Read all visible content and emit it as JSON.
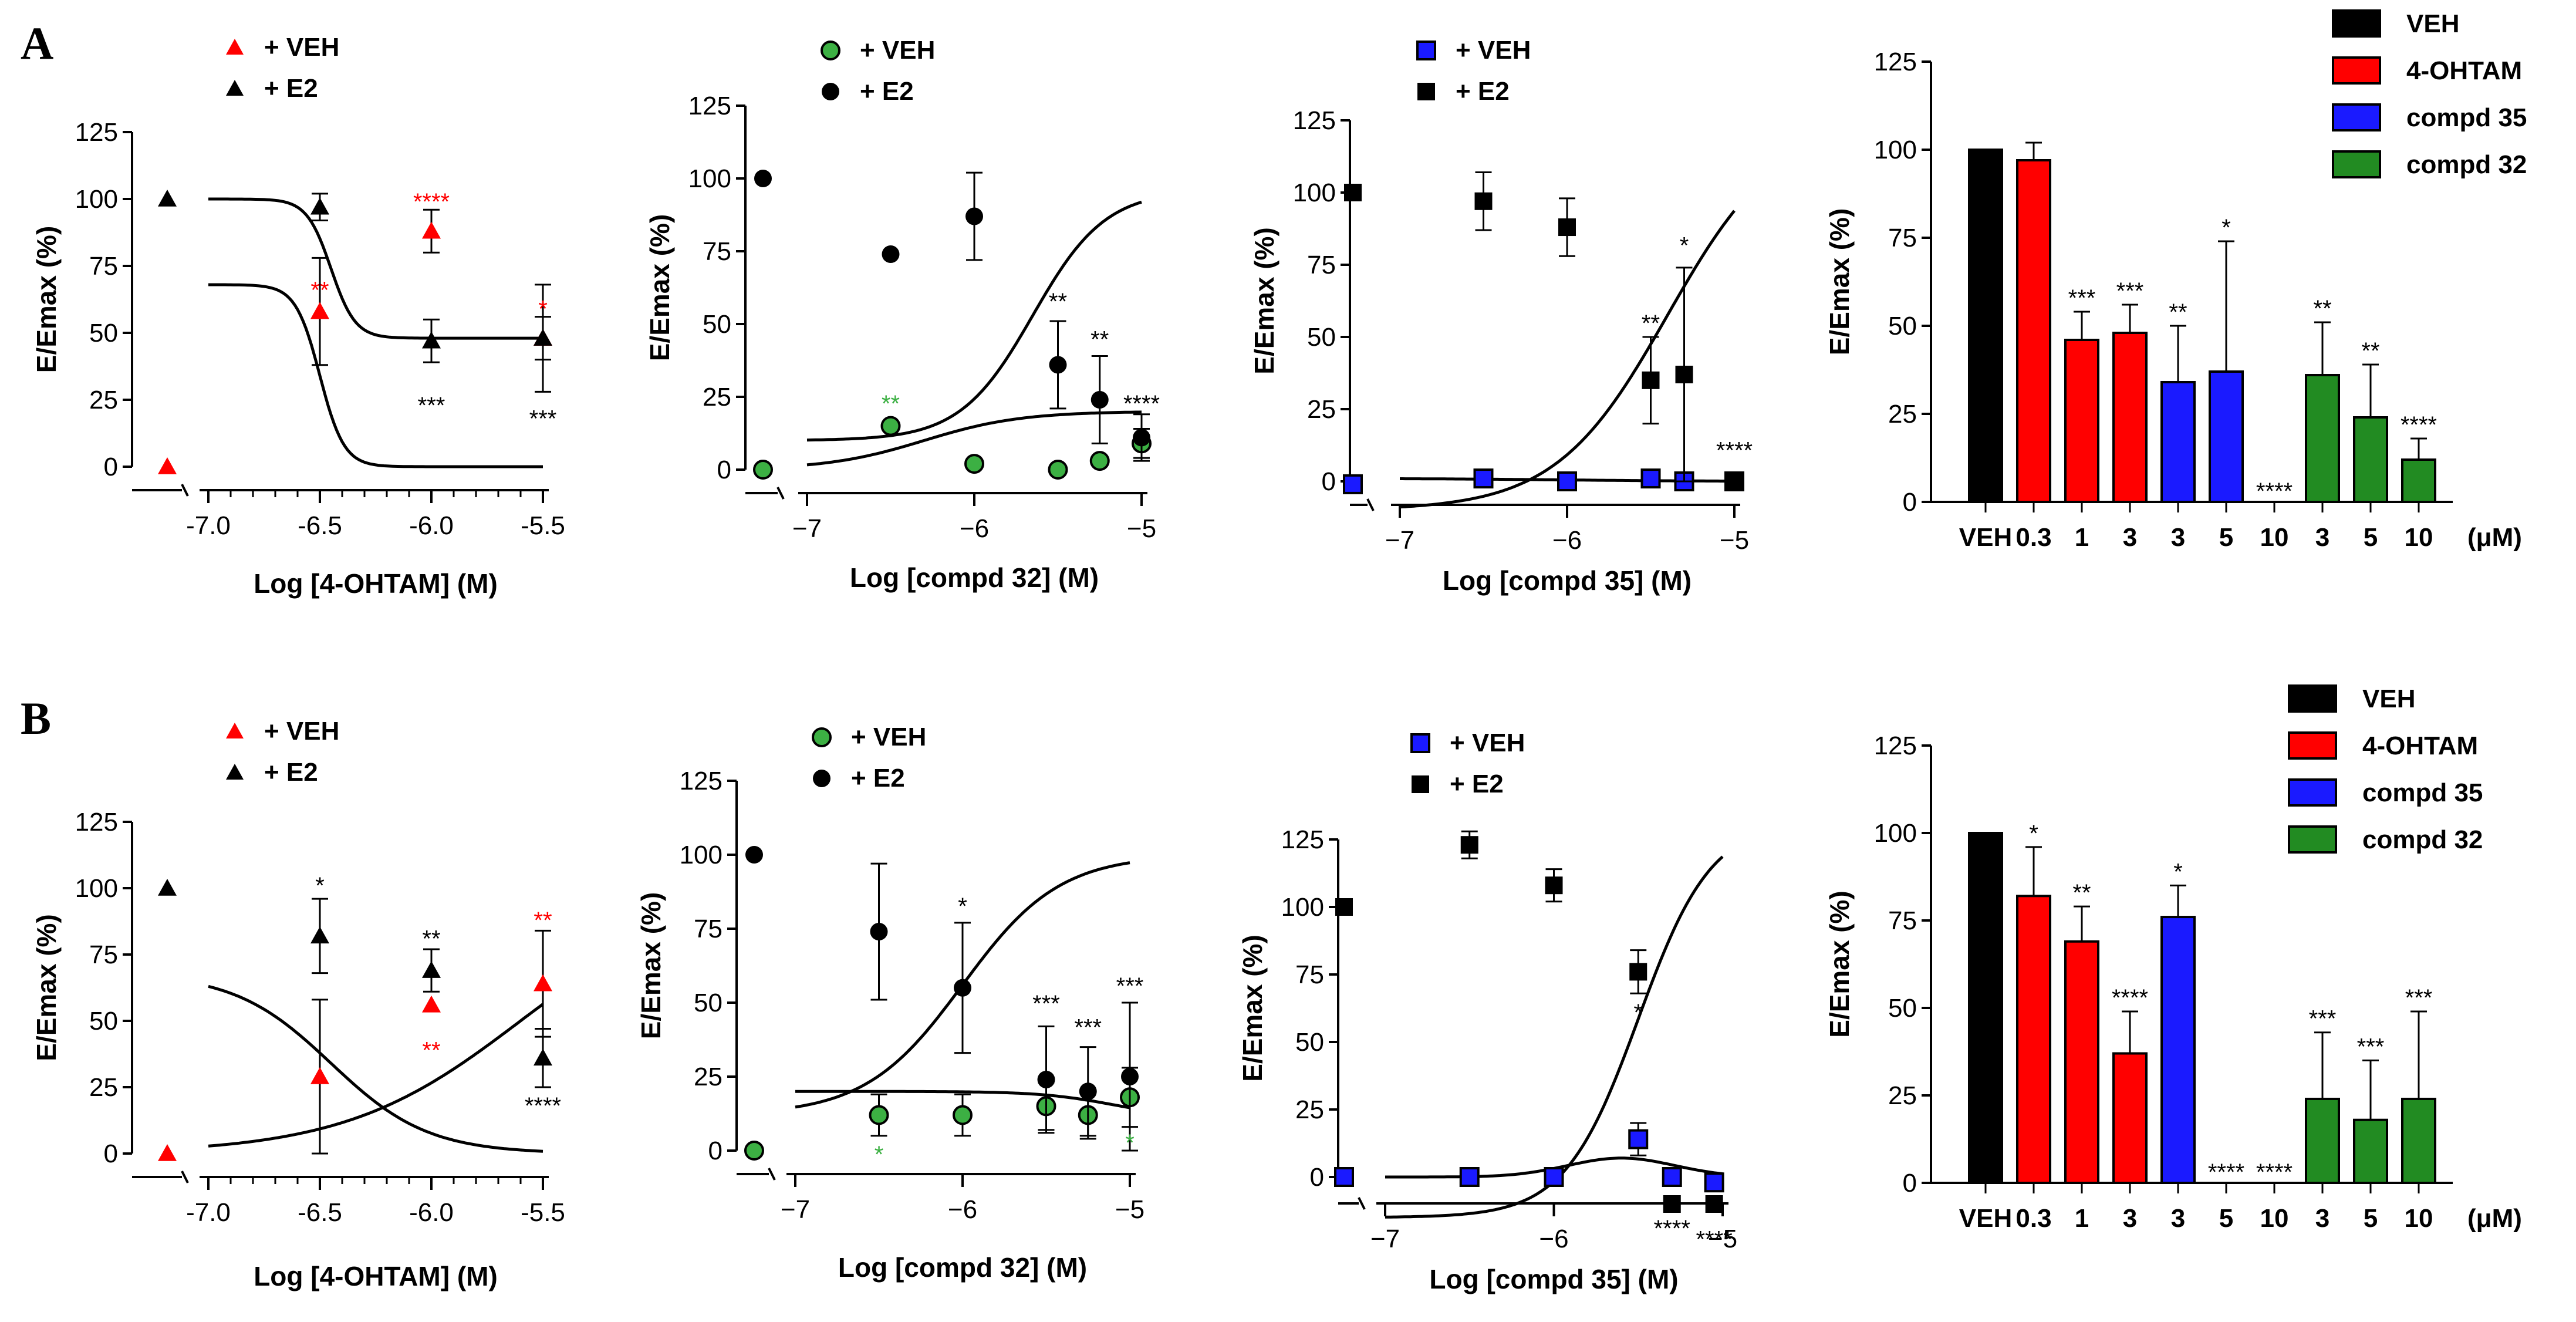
{
  "panel_labels": [
    "A",
    "B"
  ],
  "chart_data": [
    {
      "panel": "A",
      "type": "scatter",
      "xlabel": "Log [4-OHTAM] (M)",
      "ylabel": "E/Emax (%)",
      "xlim": [
        -7.0,
        -5.5
      ],
      "ylim": [
        0,
        125
      ],
      "xticks": [
        "-7.0",
        "-6.5",
        "-6.0",
        "-5.5"
      ],
      "yticks": [
        "0",
        "25",
        "50",
        "75",
        "100",
        "125"
      ],
      "x_minor_ticks": true,
      "x_axis_break": true,
      "legend": {
        "position": "top-left"
      },
      "series": [
        {
          "name": "+ VEH",
          "marker": "triangle",
          "color": "#ff0000",
          "control": {
            "y": 0
          },
          "points": [
            {
              "x": -6.5,
              "y": 58,
              "err": 20
            },
            {
              "x": -6.0,
              "y": 88,
              "err": 8
            },
            {
              "x": -5.5,
              "y": 48,
              "err": 8
            }
          ],
          "curve": {
            "bottom": 0,
            "top": 68,
            "ec50": -6.5,
            "hill": 8
          }
        },
        {
          "name": "+ E2",
          "marker": "triangle",
          "color": "#000000",
          "control": {
            "y": 100
          },
          "points": [
            {
              "x": -6.5,
              "y": 97,
              "err": 5
            },
            {
              "x": -6.0,
              "y": 47,
              "err": 8
            },
            {
              "x": -5.5,
              "y": 48,
              "err": 20
            }
          ],
          "curve": {
            "bottom": 48,
            "top": 100,
            "ec50": -6.45,
            "hill": 8
          }
        }
      ],
      "annotations": [
        {
          "text": "**",
          "x": -6.5,
          "y": 63,
          "color": "#ff0000"
        },
        {
          "text": "****",
          "x": -6.0,
          "y": 96,
          "color": "#ff0000"
        },
        {
          "text": "*",
          "x": -5.5,
          "y": 56,
          "color": "#ff0000"
        },
        {
          "text": "***",
          "x": -6.0,
          "y": 20,
          "color": "#000000"
        },
        {
          "text": "***",
          "x": -5.5,
          "y": 15,
          "color": "#000000"
        }
      ]
    },
    {
      "panel": "A",
      "type": "scatter",
      "xlabel": "Log [compd 32] (M)",
      "ylabel": "E/Emax (%)",
      "xlim": [
        -7,
        -5
      ],
      "ylim": [
        0,
        125
      ],
      "xticks": [
        "−7",
        "−6",
        "−5"
      ],
      "yticks": [
        "0",
        "25",
        "50",
        "75",
        "100",
        "125"
      ],
      "x_minor_ticks": false,
      "x_axis_break": true,
      "legend": {
        "position": "top-left"
      },
      "series": [
        {
          "name": "+ VEH",
          "marker": "circle",
          "color": "#3cb043",
          "control": {
            "y": 0
          },
          "points": [
            {
              "x": -6.5,
              "y": 15,
              "err": 0
            },
            {
              "x": -6.0,
              "y": 2,
              "err": 0
            },
            {
              "x": -5.5,
              "y": 0,
              "err": 0
            },
            {
              "x": -5.25,
              "y": 3,
              "err": 0
            },
            {
              "x": -5.0,
              "y": 9,
              "err": 5
            }
          ],
          "curve": {
            "bottom": 0,
            "top": 20,
            "ec50": -6.3,
            "hill": -1.5
          }
        },
        {
          "name": "+ E2",
          "marker": "circle",
          "color": "#000000",
          "control": {
            "y": 100
          },
          "points": [
            {
              "x": -6.5,
              "y": 74,
              "err": 0
            },
            {
              "x": -6.0,
              "y": 87,
              "err": 15
            },
            {
              "x": -5.5,
              "y": 36,
              "err": 15
            },
            {
              "x": -5.25,
              "y": 24,
              "err": 15
            },
            {
              "x": -5.0,
              "y": 11,
              "err": 8
            }
          ],
          "curve": {
            "bottom": 10,
            "top": 96,
            "ec50": -5.65,
            "hill": -2
          }
        }
      ],
      "annotations": [
        {
          "text": "**",
          "x": -6.5,
          "y": 20,
          "color": "#3cb043"
        },
        {
          "text": "**",
          "x": -5.5,
          "y": 55,
          "color": "#000000"
        },
        {
          "text": "**",
          "x": -5.25,
          "y": 42,
          "color": "#000000"
        },
        {
          "text": "****",
          "x": -5.0,
          "y": 20,
          "color": "#000000"
        }
      ]
    },
    {
      "panel": "A",
      "type": "scatter",
      "xlabel": "Log [compd 35] (M)",
      "ylabel": "E/Emax (%)",
      "xlim": [
        -7,
        -5
      ],
      "ylim": [
        0,
        125
      ],
      "xticks": [
        "−7",
        "−6",
        "−5"
      ],
      "yticks": [
        "0",
        "25",
        "50",
        "75",
        "100",
        "125"
      ],
      "x_minor_ticks": false,
      "x_axis_break": true,
      "legend": {
        "position": "top-left"
      },
      "series": [
        {
          "name": "+ VEH",
          "marker": "square",
          "color": "#1a1aff",
          "control": {
            "y": -1
          },
          "points": [
            {
              "x": -6.5,
              "y": 1,
              "err": 0
            },
            {
              "x": -6.0,
              "y": 0,
              "err": 0
            },
            {
              "x": -5.5,
              "y": 1,
              "err": 0
            },
            {
              "x": -5.3,
              "y": 0,
              "err": 0
            },
            {
              "x": -5.0,
              "y": 0,
              "err": 0
            }
          ],
          "curve": {
            "bottom": 0,
            "top": 1,
            "ec50": -6.0,
            "hill": 1
          }
        },
        {
          "name": "+ E2",
          "marker": "square",
          "color": "#000000",
          "control": {
            "y": 100
          },
          "points": [
            {
              "x": -6.5,
              "y": 97,
              "err": 10
            },
            {
              "x": -6.0,
              "y": 88,
              "err": 10
            },
            {
              "x": -5.5,
              "y": 35,
              "err": 15
            },
            {
              "x": -5.3,
              "y": 37,
              "err": 37
            },
            {
              "x": -5.0,
              "y": 0,
              "err": 0
            }
          ],
          "curve": {
            "bottom": -10,
            "top": 125,
            "ec50": -5.4,
            "hill": -1.3
          }
        }
      ],
      "annotations": [
        {
          "text": "**",
          "x": -5.5,
          "y": 52,
          "color": "#000000"
        },
        {
          "text": "*",
          "x": -5.3,
          "y": 79,
          "color": "#000000"
        },
        {
          "text": "****",
          "x": -5.0,
          "y": 8,
          "color": "#000000"
        }
      ]
    },
    {
      "panel": "A",
      "type": "bar",
      "ylabel": "E/Emax (%)",
      "ylim": [
        0,
        125
      ],
      "yticks": [
        "0",
        "25",
        "50",
        "75",
        "100",
        "125"
      ],
      "categories": [
        "VEH",
        "0.3",
        "1",
        "3",
        "3",
        "5",
        "10",
        "3",
        "5",
        "10"
      ],
      "unit_label": "(μM)",
      "legend": {
        "position": "top-right",
        "entries": [
          "VEH",
          "4-OHTAM",
          "compd 35",
          "compd 32"
        ]
      },
      "group_colors": {
        "VEH": "#000000",
        "4-OHTAM": "#ff0000",
        "compd 35": "#1a1aff",
        "compd 32": "#228b22"
      },
      "bars": [
        {
          "group": "VEH",
          "value": 100,
          "err": 0,
          "sig": ""
        },
        {
          "group": "4-OHTAM",
          "value": 97,
          "err": 5,
          "sig": ""
        },
        {
          "group": "4-OHTAM",
          "value": 46,
          "err": 8,
          "sig": "***"
        },
        {
          "group": "4-OHTAM",
          "value": 48,
          "err": 8,
          "sig": "***"
        },
        {
          "group": "compd 35",
          "value": 34,
          "err": 16,
          "sig": "**"
        },
        {
          "group": "compd 35",
          "value": 37,
          "err": 37,
          "sig": "*"
        },
        {
          "group": "compd 35",
          "value": 0,
          "err": 0,
          "sig": "****"
        },
        {
          "group": "compd 32",
          "value": 36,
          "err": 15,
          "sig": "**"
        },
        {
          "group": "compd 32",
          "value": 24,
          "err": 15,
          "sig": "**"
        },
        {
          "group": "compd 32",
          "value": 12,
          "err": 6,
          "sig": "****"
        }
      ]
    },
    {
      "panel": "B",
      "type": "scatter",
      "xlabel": "Log [4-OHTAM] (M)",
      "ylabel": "E/Emax (%)",
      "xlim": [
        -7.0,
        -5.5
      ],
      "ylim": [
        0,
        125
      ],
      "xticks": [
        "-7.0",
        "-6.5",
        "-6.0",
        "-5.5"
      ],
      "yticks": [
        "0",
        "25",
        "50",
        "75",
        "100",
        "125"
      ],
      "x_minor_ticks": true,
      "x_axis_break": true,
      "legend": {
        "position": "top-left"
      },
      "series": [
        {
          "name": "+ VEH",
          "marker": "triangle",
          "color": "#ff0000",
          "control": {
            "y": 0
          },
          "points": [
            {
              "x": -6.5,
              "y": 29,
              "err": 29
            },
            {
              "x": -6.0,
              "y": 56,
              "err": 0
            },
            {
              "x": -5.5,
              "y": 64,
              "err": 20
            }
          ],
          "curve": {
            "bottom": 0,
            "top": 68,
            "ec50": -6.45,
            "hill": 2
          }
        },
        {
          "name": "+  E2",
          "marker": "triangle",
          "color": "#000000",
          "control": {
            "y": 100
          },
          "points": [
            {
              "x": -6.5,
              "y": 82,
              "err": 14
            },
            {
              "x": -6.0,
              "y": 69,
              "err": 8
            },
            {
              "x": -5.5,
              "y": 36,
              "err": 11
            }
          ],
          "curve": {
            "bottom": 0,
            "top": 100,
            "ec50": -5.6,
            "hill": -1.1
          }
        }
      ],
      "annotations": [
        {
          "text": "*",
          "x": -6.5,
          "y": 98,
          "color": "#000000"
        },
        {
          "text": "**",
          "x": -6.0,
          "y": 78,
          "color": "#000000"
        },
        {
          "text": "****",
          "x": -5.5,
          "y": 15,
          "color": "#000000"
        },
        {
          "text": "**",
          "x": -6.0,
          "y": 36,
          "color": "#ff0000"
        },
        {
          "text": "**",
          "x": -5.5,
          "y": 85,
          "color": "#ff0000"
        }
      ]
    },
    {
      "panel": "B",
      "type": "scatter",
      "xlabel": "Log [compd 32] (M)",
      "ylabel": "E/Emax (%)",
      "xlim": [
        -7,
        -5
      ],
      "ylim": [
        0,
        125
      ],
      "xticks": [
        "−7",
        "−6",
        "−5"
      ],
      "yticks": [
        "0",
        "25",
        "50",
        "75",
        "100",
        "125"
      ],
      "x_minor_ticks": false,
      "x_axis_break": true,
      "legend": {
        "position": "top-left"
      },
      "series": [
        {
          "name": "+ VEH",
          "marker": "circle",
          "color": "#3cb043",
          "control": {
            "y": 0
          },
          "points": [
            {
              "x": -6.5,
              "y": 12,
              "err": 7
            },
            {
              "x": -6.0,
              "y": 12,
              "err": 7
            },
            {
              "x": -5.5,
              "y": 15,
              "err": 8
            },
            {
              "x": -5.25,
              "y": 12,
              "err": 8
            },
            {
              "x": -5.0,
              "y": 18,
              "err": 10
            }
          ],
          "curve": {
            "bottom": 11,
            "top": 20,
            "ec50": -5.1,
            "hill": 2
          }
        },
        {
          "name": "+ E2",
          "marker": "circle",
          "color": "#000000",
          "control": {
            "y": 100
          },
          "points": [
            {
              "x": -6.5,
              "y": 74,
              "err": 23
            },
            {
              "x": -6.0,
              "y": 55,
              "err": 22
            },
            {
              "x": -5.5,
              "y": 24,
              "err": 18
            },
            {
              "x": -5.25,
              "y": 20,
              "err": 15
            },
            {
              "x": -5.0,
              "y": 25,
              "err": 25
            }
          ],
          "curve": {
            "bottom": 12,
            "top": 100,
            "ec50": -6.0,
            "hill": -1.5
          }
        }
      ],
      "annotations": [
        {
          "text": "*",
          "x": -6.0,
          "y": 80,
          "color": "#000000"
        },
        {
          "text": "***",
          "x": -5.5,
          "y": 47,
          "color": "#000000"
        },
        {
          "text": "***",
          "x": -5.25,
          "y": 39,
          "color": "#000000"
        },
        {
          "text": "***",
          "x": -5.0,
          "y": 53,
          "color": "#000000"
        },
        {
          "text": "*",
          "x": -6.5,
          "y": -4,
          "color": "#3cb043"
        },
        {
          "text": "*",
          "x": -5.0,
          "y": 0,
          "color": "#3cb043"
        }
      ]
    },
    {
      "panel": "B",
      "type": "scatter",
      "xlabel": "Log [compd 35] (M)",
      "ylabel": "E/Emax (%)",
      "xlim": [
        -7,
        -5
      ],
      "ylim": [
        0,
        125
      ],
      "xticks": [
        "−7",
        "−6",
        "−5"
      ],
      "yticks": [
        "0",
        "25",
        "50",
        "75",
        "100",
        "125"
      ],
      "x_minor_ticks": false,
      "x_axis_break": true,
      "legend": {
        "position": "top-left"
      },
      "series": [
        {
          "name": "+  VEH",
          "marker": "square",
          "color": "#1a1aff",
          "control": {
            "y": 0
          },
          "points": [
            {
              "x": -6.5,
              "y": 0,
              "err": 0
            },
            {
              "x": -6.0,
              "y": 0,
              "err": 0
            },
            {
              "x": -5.5,
              "y": 14,
              "err": 6
            },
            {
              "x": -5.3,
              "y": 0,
              "err": 0
            },
            {
              "x": -5.05,
              "y": -2,
              "err": 0
            }
          ],
          "curve": {
            "bump": true,
            "peak_x": -5.6,
            "peak_y": 7
          }
        },
        {
          "name": "+ E2",
          "marker": "square",
          "color": "#000000",
          "control": {
            "y": 100
          },
          "points": [
            {
              "x": -6.5,
              "y": 123,
              "err": 5
            },
            {
              "x": -6.0,
              "y": 108,
              "err": 6
            },
            {
              "x": -5.5,
              "y": 76,
              "err": 8
            },
            {
              "x": -5.3,
              "y": -10,
              "err": 0
            },
            {
              "x": -5.05,
              "y": -10,
              "err": 0
            }
          ],
          "curve": {
            "bottom": -15,
            "top": 132,
            "ec50": -5.5,
            "hill": -2
          }
        }
      ],
      "annotations": [
        {
          "text": "*",
          "x": -5.5,
          "y": 58,
          "color": "#000000"
        },
        {
          "text": "****",
          "x": -5.3,
          "y": -22,
          "color": "#000000"
        },
        {
          "text": "****",
          "x": -5.05,
          "y": -26,
          "color": "#000000"
        }
      ]
    },
    {
      "panel": "B",
      "type": "bar",
      "ylabel": "E/Emax (%)",
      "ylim": [
        0,
        125
      ],
      "yticks": [
        "0",
        "25",
        "50",
        "75",
        "100",
        "125"
      ],
      "categories": [
        "VEH",
        "0.3",
        "1",
        "3",
        "3",
        "5",
        "10",
        "3",
        "5",
        "10"
      ],
      "unit_label": "(μM)",
      "legend": {
        "position": "top-right",
        "entries": [
          "VEH",
          "4-OHTAM",
          "compd 35",
          "compd 32"
        ]
      },
      "group_colors": {
        "VEH": "#000000",
        "4-OHTAM": "#ff0000",
        "compd 35": "#1a1aff",
        "compd 32": "#228b22"
      },
      "bars": [
        {
          "group": "VEH",
          "value": 100,
          "err": 0,
          "sig": ""
        },
        {
          "group": "4-OHTAM",
          "value": 82,
          "err": 14,
          "sig": "*"
        },
        {
          "group": "4-OHTAM",
          "value": 69,
          "err": 10,
          "sig": "**"
        },
        {
          "group": "4-OHTAM",
          "value": 37,
          "err": 12,
          "sig": "****"
        },
        {
          "group": "compd 35",
          "value": 76,
          "err": 9,
          "sig": "*"
        },
        {
          "group": "compd 35",
          "value": 0,
          "err": 0,
          "sig": "****"
        },
        {
          "group": "compd 35",
          "value": 0,
          "err": 0,
          "sig": "****"
        },
        {
          "group": "compd 32",
          "value": 24,
          "err": 19,
          "sig": "***"
        },
        {
          "group": "compd 32",
          "value": 18,
          "err": 17,
          "sig": "***"
        },
        {
          "group": "compd 32",
          "value": 24,
          "err": 25,
          "sig": "***"
        }
      ]
    }
  ]
}
